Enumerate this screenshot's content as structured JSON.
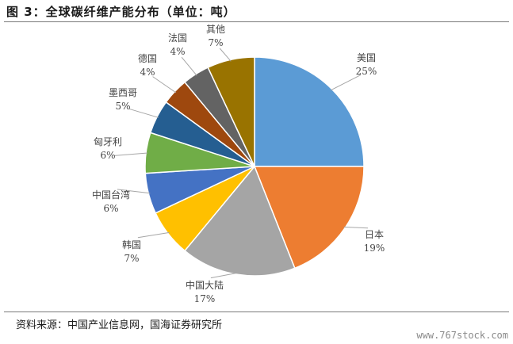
{
  "figure": {
    "title": "图 3：全球碳纤维产能分布（单位：吨）",
    "source": "资料来源：中国产业信息网，国海证券研究所",
    "watermark": "www.767stock.com"
  },
  "chart_data": {
    "type": "pie",
    "title": "",
    "start": "12 o'clock, clockwise",
    "categories": [
      "美国",
      "日本",
      "中国大陆",
      "韩国",
      "中国台湾",
      "匈牙利",
      "墨西哥",
      "德国",
      "法国",
      "其他"
    ],
    "values": [
      25,
      19,
      17,
      7,
      6,
      6,
      5,
      4,
      4,
      7
    ],
    "value_labels": [
      "25%",
      "19%",
      "17%",
      "7%",
      "6%",
      "6%",
      "5%",
      "4%",
      "4%",
      "7%"
    ],
    "colors": [
      "#5b9bd5",
      "#ed7d31",
      "#a5a5a5",
      "#ffc000",
      "#4472c4",
      "#70ad47",
      "#255e91",
      "#9e480e",
      "#636363",
      "#997300"
    ],
    "legend": "none (leader-line labels)"
  }
}
